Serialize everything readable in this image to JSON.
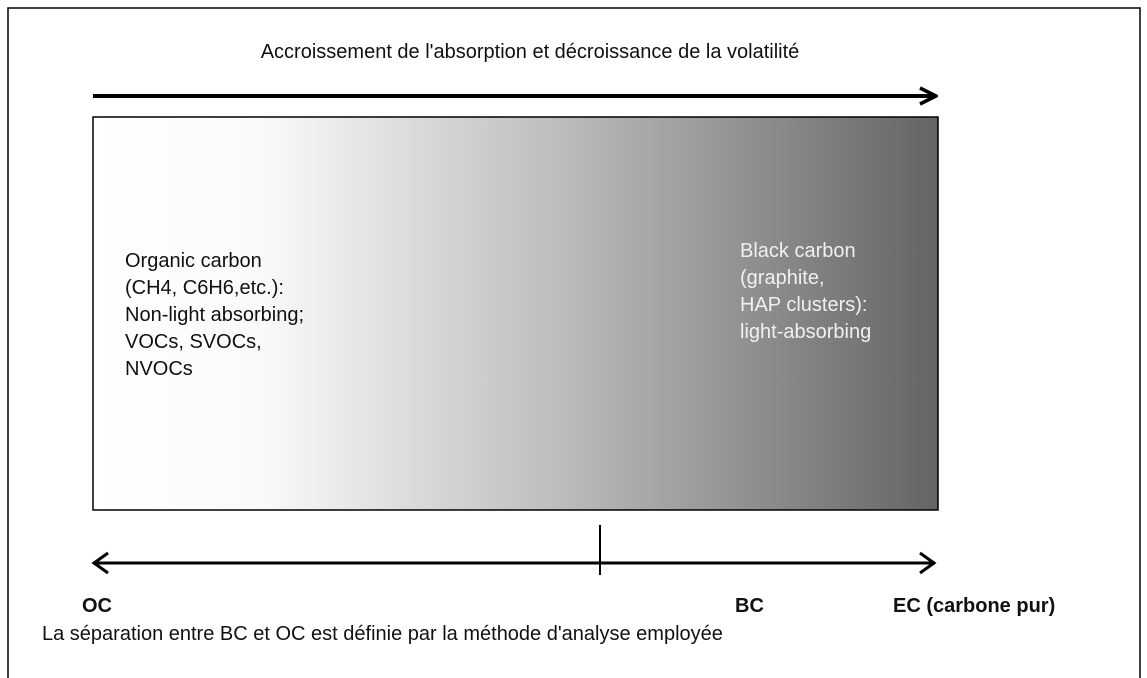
{
  "header": {
    "title": "Accroissement de l'absorption et décroissance de la volatilité"
  },
  "left_box": {
    "lines": [
      "Organic carbon",
      "(CH4, C6H6,etc.):",
      "Non-light absorbing;",
      "VOCs, SVOCs,",
      "NVOCs"
    ]
  },
  "right_box": {
    "lines": [
      "Black carbon",
      "(graphite,",
      "HAP clusters):",
      "light-absorbing"
    ]
  },
  "axis": {
    "labels": [
      "OC",
      "BC",
      "EC (carbone pur)"
    ]
  },
  "footer": {
    "text": "La séparation entre BC et OC est définie par la méthode d'analyse employée"
  }
}
